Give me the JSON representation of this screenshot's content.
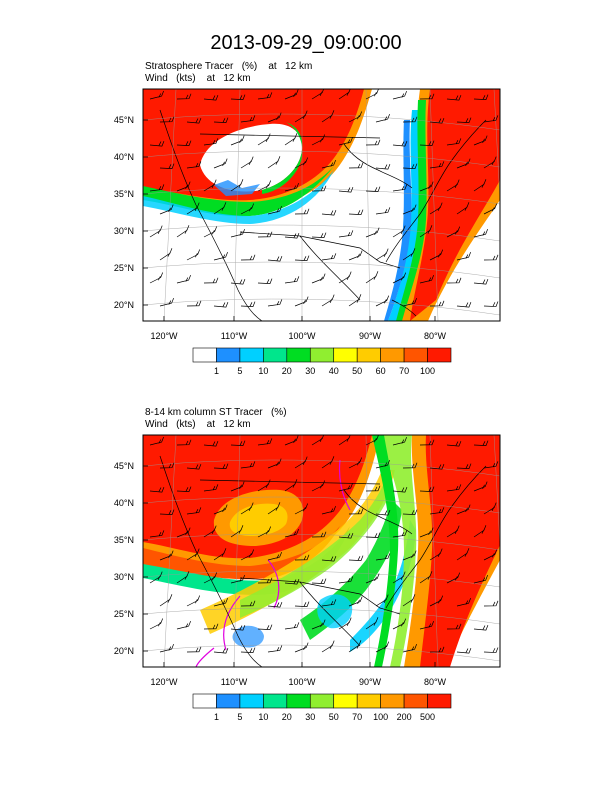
{
  "title": "2013-09-29_09:00:00",
  "panels": [
    {
      "heading_line1": "Stratosphere Tracer   (%)    at   12 km",
      "heading_line2": "Wind   (kts)    at   12 km",
      "lat_labels": [
        "45°N",
        "40°N",
        "35°N",
        "30°N",
        "25°N",
        "20°N"
      ],
      "lon_labels": [
        "120°W",
        "110°W",
        "100°W",
        "90°W",
        "80°W"
      ],
      "colorbar_labels": [
        "1",
        "5",
        "10",
        "20",
        "30",
        "40",
        "50",
        "60",
        "70",
        "100"
      ],
      "colorbar_colors": [
        "#ffffff",
        "#1e90ff",
        "#00d0ff",
        "#00e68c",
        "#00dd22",
        "#90ee30",
        "#ffff00",
        "#ffcc00",
        "#ff9900",
        "#ff5500",
        "#ff1a00"
      ]
    },
    {
      "heading_line1": "8-14 km column ST Tracer   (%)",
      "heading_line2": "Wind   (kts)    at   12 km",
      "lat_labels": [
        "45°N",
        "40°N",
        "35°N",
        "30°N",
        "25°N",
        "20°N"
      ],
      "lon_labels": [
        "120°W",
        "110°W",
        "100°W",
        "90°W",
        "80°W"
      ],
      "colorbar_labels": [
        "1",
        "5",
        "10",
        "20",
        "30",
        "50",
        "70",
        "100",
        "200",
        "500"
      ],
      "colorbar_colors": [
        "#ffffff",
        "#1e90ff",
        "#00d0ff",
        "#00e68c",
        "#00dd22",
        "#90ee30",
        "#ffff00",
        "#ffcc00",
        "#ff9900",
        "#ff5500",
        "#ff1a00"
      ]
    }
  ],
  "colors": {
    "red": "#ff1a00",
    "orange_red": "#ff5500",
    "orange": "#ff9900",
    "gold": "#ffcc00",
    "green": "#00dd22",
    "sea_green": "#00e68c",
    "cyan": "#00d0ff",
    "blue": "#1e90ff",
    "magenta": "#e000e0"
  }
}
